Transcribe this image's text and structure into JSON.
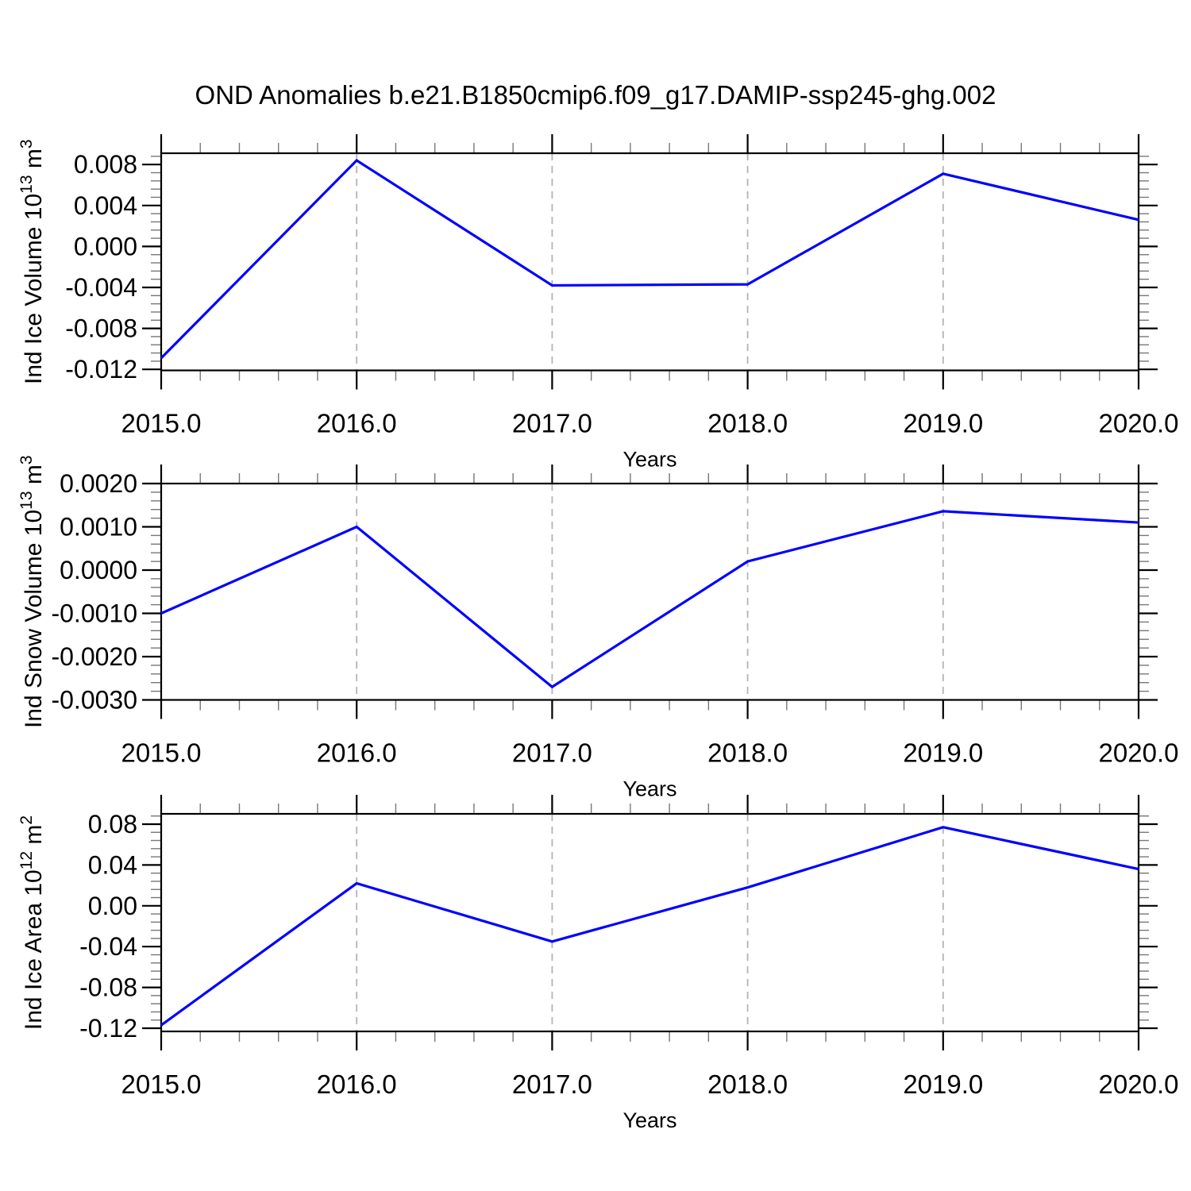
{
  "title": "OND Anomalies b.e21.B1850cmip6.f09_g17.DAMIP-ssp245-ghg.002",
  "colors": {
    "line": "#0000ff",
    "axis": "#000000",
    "minor_tick": "#777777",
    "grid": "#b3b3b3",
    "background": "#ffffff",
    "text": "#000000"
  },
  "chart_data": [
    {
      "type": "line",
      "x": [
        2015.0,
        2016.0,
        2017.0,
        2018.0,
        2019.0,
        2020.0
      ],
      "values": [
        -0.0109,
        0.0084,
        -0.0038,
        -0.0037,
        0.0071,
        0.0026
      ],
      "xlabel": "Years",
      "ylabel": "Ind Ice Volume 10^13 m^3",
      "ylabel_parts": [
        {
          "text": "Ind Ice Volume 10"
        },
        {
          "text": "13",
          "sup": true
        },
        {
          "text": " m"
        },
        {
          "text": "3",
          "sup": true
        }
      ],
      "xlim": [
        2015.0,
        2020.0
      ],
      "ylim": [
        -0.0121,
        0.0091
      ],
      "x_tick_labels": [
        "2015.0",
        "2016.0",
        "2017.0",
        "2018.0",
        "2019.0",
        "2020.0"
      ],
      "y_ticks": [
        0.008,
        0.004,
        0.0,
        -0.004,
        -0.008,
        -0.012
      ],
      "y_tick_labels": [
        "0.008",
        "0.004",
        "0.000",
        "-0.004",
        "-0.008",
        "-0.012"
      ],
      "y_minor_step": 0.0008,
      "x_minor_step": 0.2,
      "gridlines_x": [
        2016,
        2017,
        2018,
        2019
      ],
      "grid_style": "dashed-vertical",
      "legend": null
    },
    {
      "type": "line",
      "x": [
        2015.0,
        2016.0,
        2017.0,
        2018.0,
        2019.0,
        2020.0
      ],
      "values": [
        -0.001,
        0.001,
        -0.0027,
        0.0002,
        0.00136,
        0.0011
      ],
      "xlabel": "Years",
      "ylabel": "Ind Snow Volume 10^13 m^3",
      "ylabel_parts": [
        {
          "text": "Ind Snow Volume 10"
        },
        {
          "text": "13",
          "sup": true
        },
        {
          "text": " m"
        },
        {
          "text": "3",
          "sup": true
        }
      ],
      "xlim": [
        2015.0,
        2020.0
      ],
      "ylim": [
        -0.003,
        0.002
      ],
      "x_tick_labels": [
        "2015.0",
        "2016.0",
        "2017.0",
        "2018.0",
        "2019.0",
        "2020.0"
      ],
      "y_ticks": [
        0.002,
        0.001,
        0.0,
        -0.001,
        -0.002,
        -0.003
      ],
      "y_tick_labels": [
        "0.0020",
        "0.0010",
        "0.0000",
        "-0.0010",
        "-0.0020",
        "-0.0030"
      ],
      "y_minor_step": 0.0002,
      "x_minor_step": 0.2,
      "gridlines_x": [
        2016,
        2017,
        2018,
        2019
      ],
      "grid_style": "dashed-vertical",
      "legend": null
    },
    {
      "type": "line",
      "x": [
        2015.0,
        2016.0,
        2017.0,
        2018.0,
        2019.0,
        2020.0
      ],
      "values": [
        -0.117,
        0.022,
        -0.035,
        0.018,
        0.077,
        0.036
      ],
      "xlabel": "Years",
      "ylabel": "Ind Ice Area 10^12 m^2",
      "ylabel_parts": [
        {
          "text": "Ind Ice Area 10"
        },
        {
          "text": "12",
          "sup": true
        },
        {
          "text": " m"
        },
        {
          "text": "2",
          "sup": true
        }
      ],
      "xlim": [
        2015.0,
        2020.0
      ],
      "ylim": [
        -0.1231,
        0.0901
      ],
      "x_tick_labels": [
        "2015.0",
        "2016.0",
        "2017.0",
        "2018.0",
        "2019.0",
        "2020.0"
      ],
      "y_ticks": [
        0.08,
        0.04,
        0.0,
        -0.04,
        -0.08,
        -0.12
      ],
      "y_tick_labels": [
        "0.08",
        "0.04",
        "0.00",
        "-0.04",
        "-0.08",
        "-0.12"
      ],
      "y_minor_step": 0.008,
      "x_minor_step": 0.2,
      "gridlines_x": [
        2016,
        2017,
        2018,
        2019
      ],
      "grid_style": "dashed-vertical",
      "legend": null
    }
  ]
}
